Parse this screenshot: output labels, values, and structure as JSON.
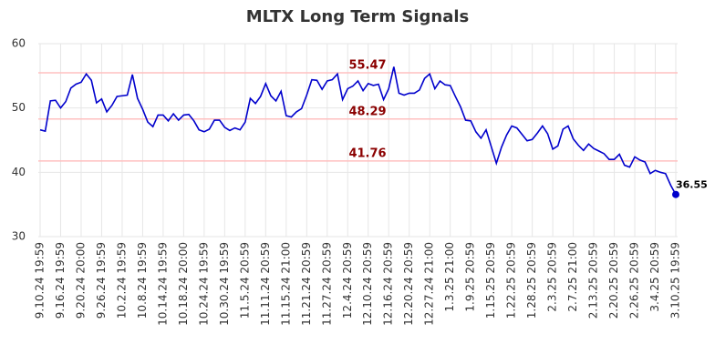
{
  "chart_data": {
    "type": "line",
    "title": "MLTX Long Term Signals",
    "categories": [
      "9.10.24 19:59",
      null,
      null,
      null,
      "9.16.24 19:59",
      null,
      null,
      null,
      "9.20.24 20:00",
      null,
      null,
      null,
      "9.26.24 19:59",
      null,
      null,
      null,
      "10.2.24 19:59",
      null,
      null,
      null,
      "10.8.24 19:59",
      null,
      null,
      null,
      "10.14.24 19:59",
      null,
      null,
      null,
      "10.18.24 20:00",
      null,
      null,
      null,
      "10.24.24 19:59",
      null,
      null,
      null,
      "10.30.24 19:59",
      null,
      null,
      null,
      "11.5.24 20:59",
      null,
      null,
      null,
      "11.11.24 20:59",
      null,
      null,
      null,
      "11.15.24 21:00",
      null,
      null,
      null,
      "11.21.24 20:59",
      null,
      null,
      null,
      "11.27.24 20:59",
      null,
      null,
      null,
      "12.4.24 20:59",
      null,
      null,
      null,
      "12.10.24 20:59",
      null,
      null,
      null,
      "12.16.24 20:59",
      null,
      null,
      null,
      "12.20.24 20:59",
      null,
      null,
      null,
      "12.27.24 21:00",
      null,
      null,
      null,
      "1.3.25 21:00",
      null,
      null,
      null,
      "1.9.25 20:59",
      null,
      null,
      null,
      "1.15.25 20:59",
      null,
      null,
      null,
      "1.22.25 20:59",
      null,
      null,
      null,
      "1.28.25 20:59",
      null,
      null,
      null,
      "2.3.25 20:59",
      null,
      null,
      null,
      "2.7.25 21:00",
      null,
      null,
      null,
      "2.13.25 20:59",
      null,
      null,
      null,
      "2.20.25 20:59",
      null,
      null,
      null,
      "2.26.25 20:59",
      null,
      null,
      null,
      "3.4.25 20:59",
      null,
      null,
      null,
      "3.10.25 19:59"
    ],
    "values": [
      46.6,
      46.4,
      51.1,
      51.2,
      50.0,
      51.0,
      53.1,
      53.7,
      54.0,
      55.3,
      54.3,
      50.8,
      51.4,
      49.4,
      50.4,
      51.8,
      51.9,
      52.0,
      55.2,
      51.5,
      49.8,
      47.8,
      47.1,
      48.9,
      48.9,
      48.0,
      49.1,
      48.1,
      48.9,
      49.0,
      48.0,
      46.6,
      46.3,
      46.7,
      48.1,
      48.1,
      47.0,
      46.5,
      46.9,
      46.6,
      47.8,
      51.5,
      50.7,
      51.8,
      53.8,
      51.9,
      51.1,
      52.6,
      48.8,
      48.6,
      49.4,
      49.9,
      52.0,
      54.4,
      54.3,
      52.9,
      54.2,
      54.4,
      55.3,
      51.3,
      53.0,
      53.4,
      54.2,
      52.7,
      53.8,
      53.5,
      53.7,
      51.3,
      53.0,
      56.4,
      52.3,
      52.0,
      52.3,
      52.3,
      52.8,
      54.6,
      55.3,
      53.0,
      54.2,
      53.6,
      53.5,
      51.8,
      50.2,
      48.1,
      48.0,
      46.3,
      45.3,
      46.6,
      44.0,
      41.4,
      43.9,
      45.8,
      47.2,
      46.9,
      45.9,
      44.9,
      45.1,
      46.1,
      47.2,
      46.0,
      43.6,
      44.1,
      46.7,
      47.2,
      45.2,
      44.2,
      43.4,
      44.4,
      43.7,
      43.3,
      42.9,
      42.0,
      42.0,
      42.8,
      41.1,
      40.8,
      42.4,
      41.9,
      41.6,
      39.8,
      40.3,
      40.0,
      39.8,
      38.0,
      36.55
    ],
    "color": "#0000cc",
    "signals": [
      55.47,
      48.29,
      41.76
    ],
    "signal_color": "#ffc0c0",
    "signal_label_color": "#8b0000",
    "ylim": [
      30,
      60
    ],
    "yticks": [
      30,
      40,
      50,
      60
    ],
    "grid": true
  }
}
